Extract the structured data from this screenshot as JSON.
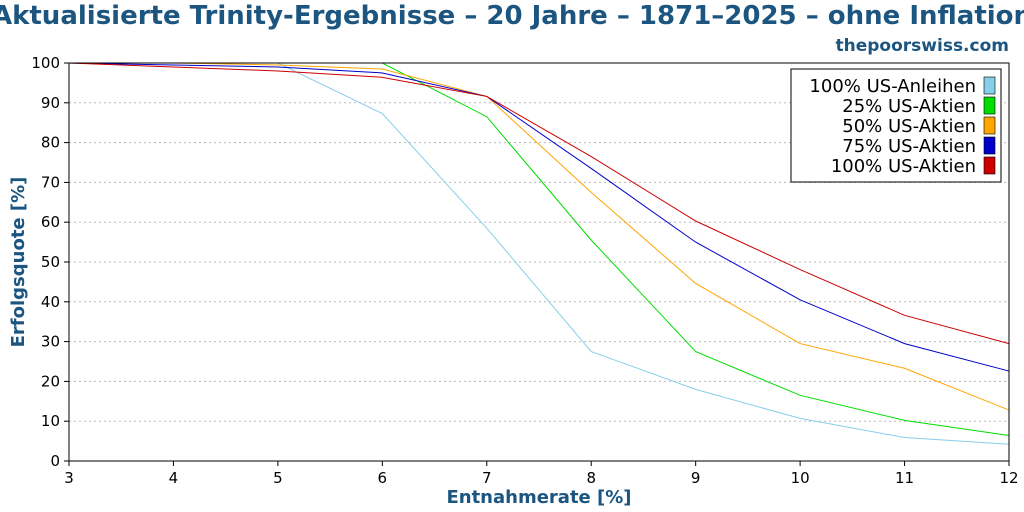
{
  "chart_data": {
    "type": "line",
    "title": "Aktualisierte Trinity-Ergebnisse – 20 Jahre – 1871–2025 – ohne Inflation",
    "subtitle": "thepoorswiss.com",
    "xlabel": "Entnahmerate [%]",
    "ylabel": "Erfolgsquote [%]",
    "xlim": [
      3,
      12
    ],
    "ylim": [
      0,
      100
    ],
    "xticks": [
      "3",
      "4",
      "5",
      "6",
      "7",
      "8",
      "9",
      "10",
      "11",
      "12"
    ],
    "yticks": [
      "0",
      "10",
      "20",
      "30",
      "40",
      "50",
      "60",
      "70",
      "80",
      "90",
      "100"
    ],
    "grid": "horizontal-dotted",
    "legend_position": "top-right",
    "x": [
      3,
      4,
      5,
      6,
      7,
      8,
      9,
      10,
      11,
      12
    ],
    "series": [
      {
        "name": "100% US-Anleihen",
        "color": "#87ceeb",
        "values": [
          100,
          100,
          100,
          87.3,
          58.5,
          27.5,
          18,
          10.7,
          5.9,
          4.2
        ]
      },
      {
        "name": "25% US-Aktien",
        "color": "#00dd00",
        "values": [
          100,
          100,
          100,
          100,
          86.5,
          55.5,
          27.5,
          16.5,
          10.2,
          6.4
        ]
      },
      {
        "name": "50% US-Aktien",
        "color": "#ffa500",
        "values": [
          100,
          100,
          99.5,
          98.5,
          91.6,
          67.5,
          44.6,
          29.5,
          23.3,
          12.8
        ]
      },
      {
        "name": "75% US-Aktien",
        "color": "#0000cc",
        "values": [
          100,
          99.5,
          99,
          97.5,
          91.6,
          73.5,
          55,
          40.5,
          29.5,
          22.6
        ]
      },
      {
        "name": "100% US-Aktien",
        "color": "#cc0000",
        "values": [
          100,
          99,
          98,
          96.4,
          91.6,
          76.5,
          60.3,
          48.1,
          36.6,
          29.5
        ]
      }
    ]
  }
}
